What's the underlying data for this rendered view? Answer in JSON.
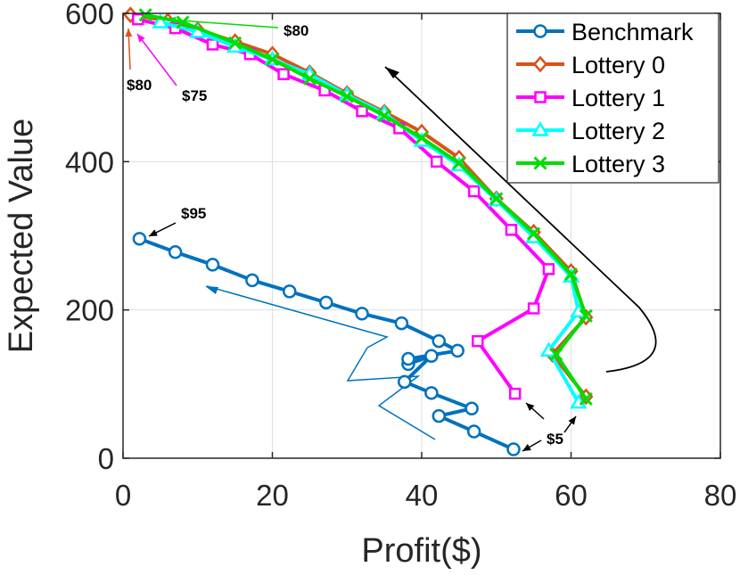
{
  "chart_data": {
    "type": "line",
    "title": "",
    "xlabel": "Profit($)",
    "ylabel": "Expected Value",
    "xlim": [
      0,
      80
    ],
    "ylim": [
      0,
      600
    ],
    "xticks": [
      0,
      20,
      40,
      60,
      80
    ],
    "yticks": [
      0,
      200,
      400,
      600
    ],
    "grid": true,
    "legend_position": "top-right",
    "series": [
      {
        "name": "Benchmark",
        "color": "#0072BD",
        "marker": "circle",
        "points": [
          [
            52.3,
            12
          ],
          [
            47,
            36
          ],
          [
            42.3,
            57
          ],
          [
            46.7,
            67
          ],
          [
            41.3,
            88
          ],
          [
            37.7,
            103
          ],
          [
            41.3,
            138
          ],
          [
            38.2,
            127
          ],
          [
            38.2,
            134
          ],
          [
            44.8,
            145
          ],
          [
            42.3,
            158
          ],
          [
            37.3,
            182
          ],
          [
            32,
            195
          ],
          [
            27.2,
            210
          ],
          [
            22.3,
            225
          ],
          [
            17.3,
            240
          ],
          [
            12,
            261
          ],
          [
            7,
            278
          ],
          [
            2.2,
            296
          ]
        ]
      },
      {
        "name": "Lottery 0",
        "color": "#D95319",
        "marker": "diamond",
        "points": [
          [
            1,
            598
          ],
          [
            6,
            590
          ],
          [
            10,
            578
          ],
          [
            15,
            562
          ],
          [
            20,
            545
          ],
          [
            25,
            520
          ],
          [
            30,
            492
          ],
          [
            35,
            467
          ],
          [
            40,
            440
          ],
          [
            45,
            405
          ],
          [
            50,
            350
          ],
          [
            55,
            305
          ],
          [
            60,
            252
          ],
          [
            62,
            190
          ],
          [
            57.5,
            140
          ],
          [
            62,
            83
          ]
        ]
      },
      {
        "name": "Lottery 1",
        "color": "#FF00FF",
        "marker": "square",
        "points": [
          [
            2,
            592
          ],
          [
            7,
            580
          ],
          [
            12,
            558
          ],
          [
            17,
            545
          ],
          [
            21.5,
            518
          ],
          [
            27,
            496
          ],
          [
            32,
            468
          ],
          [
            37,
            445
          ],
          [
            42,
            400
          ],
          [
            47,
            360
          ],
          [
            52,
            308
          ],
          [
            57,
            255
          ],
          [
            55,
            202
          ],
          [
            47.5,
            158
          ],
          [
            52.5,
            87
          ]
        ]
      },
      {
        "name": "Lottery 2",
        "color": "#00FFFF",
        "marker": "triangle",
        "points": [
          [
            5,
            588
          ],
          [
            10,
            575
          ],
          [
            15,
            555
          ],
          [
            20,
            538
          ],
          [
            25,
            518
          ],
          [
            30,
            490
          ],
          [
            35,
            465
          ],
          [
            40,
            428
          ],
          [
            45,
            395
          ],
          [
            50,
            348
          ],
          [
            55,
            298
          ],
          [
            60,
            245
          ],
          [
            61,
            198
          ],
          [
            57,
            145
          ],
          [
            61,
            75
          ]
        ]
      },
      {
        "name": "Lottery 3",
        "color": "#00DD00",
        "marker": "x",
        "points": [
          [
            3,
            598
          ],
          [
            8,
            588
          ],
          [
            15,
            560
          ],
          [
            20,
            538
          ],
          [
            25,
            512
          ],
          [
            30,
            488
          ],
          [
            35,
            462
          ],
          [
            40,
            432
          ],
          [
            45,
            398
          ],
          [
            50,
            350
          ],
          [
            55,
            303
          ],
          [
            60,
            248
          ],
          [
            62,
            192
          ],
          [
            58,
            140
          ],
          [
            62,
            80
          ]
        ]
      }
    ],
    "annotations": [
      {
        "text": "$80",
        "color": "#00DD00"
      },
      {
        "text": "$80",
        "color": "#D95319"
      },
      {
        "text": "$75",
        "color": "#FF00FF"
      },
      {
        "text": "$95",
        "color": "#000000"
      },
      {
        "text": "$5",
        "color": "#000000"
      }
    ]
  }
}
